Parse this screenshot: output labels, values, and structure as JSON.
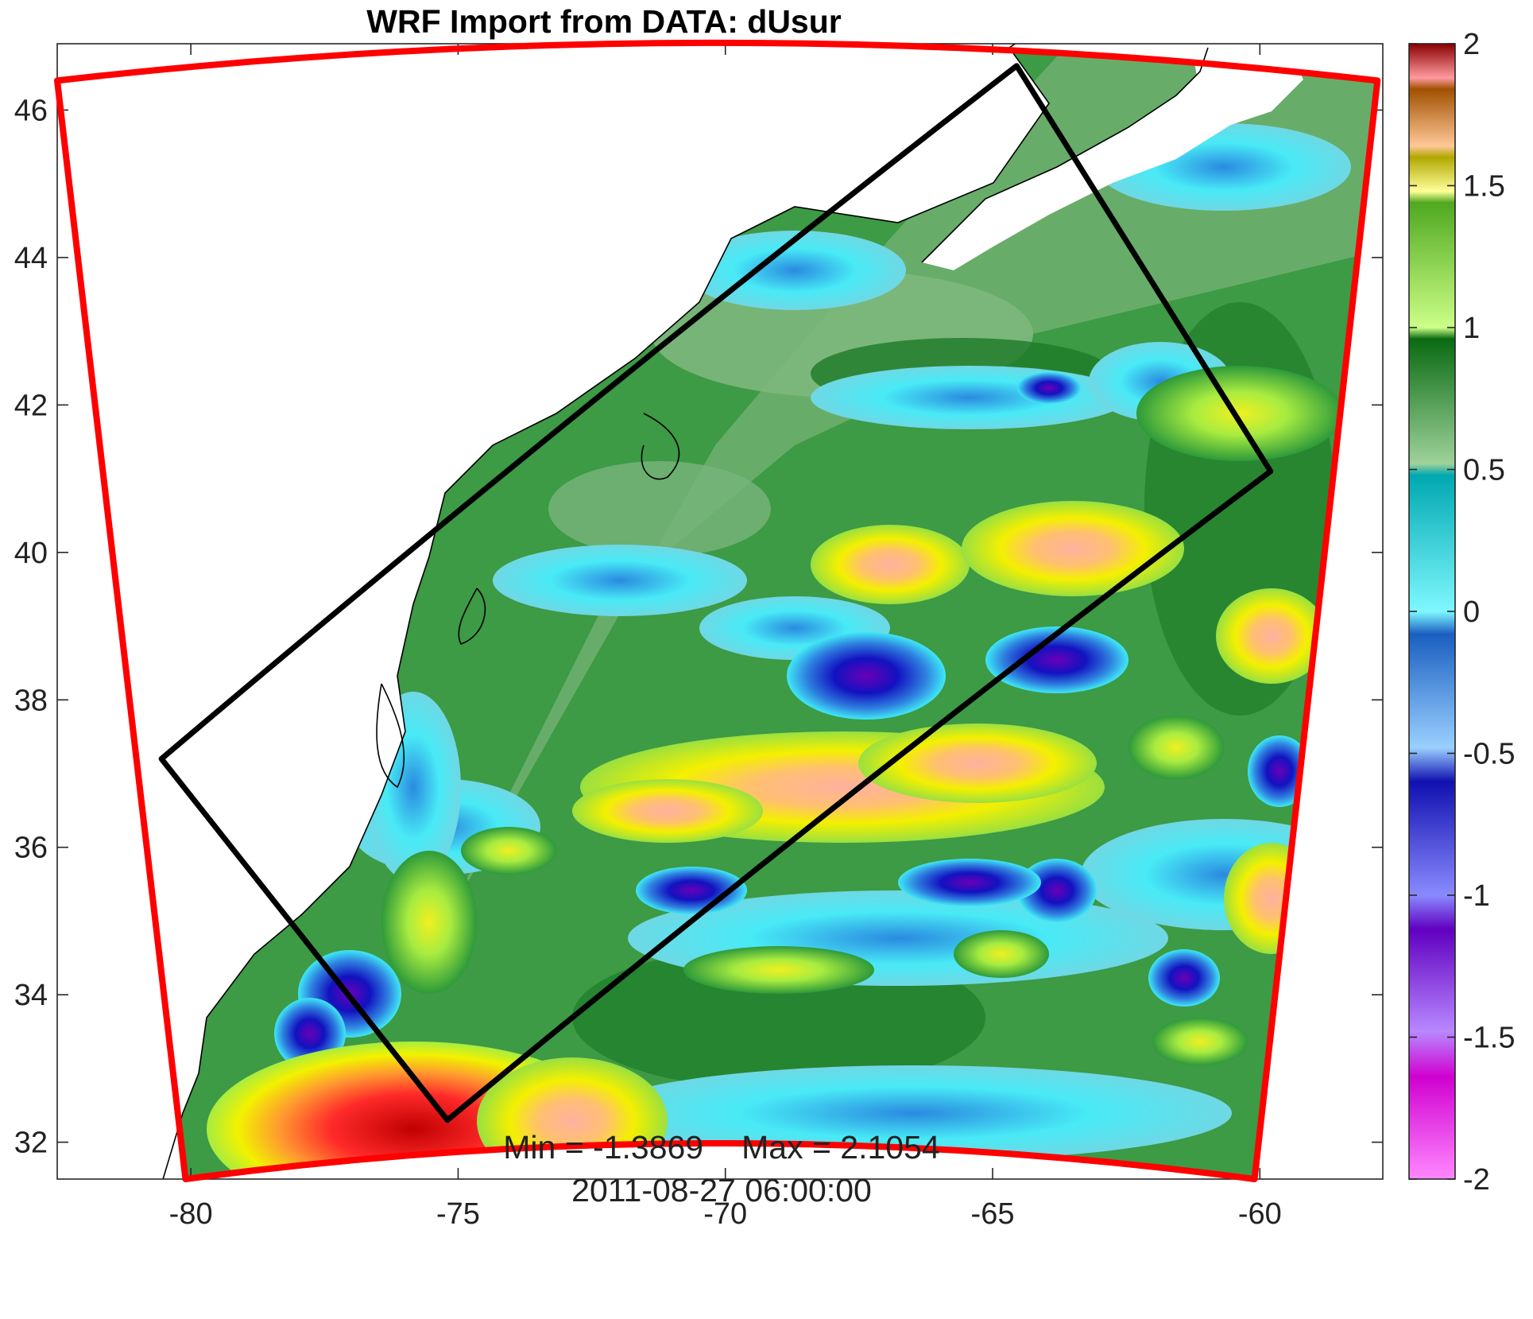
{
  "title": "WRF Import from DATA: dUsur",
  "stats": {
    "min_label": "Min = -1.3869",
    "max_label": "Max = 2.1054",
    "timestamp": "2011-08-27 06:00:00"
  },
  "axes": {
    "x_ticks": [
      -80,
      -75,
      -70,
      -65,
      -60
    ],
    "y_ticks": [
      32,
      34,
      36,
      38,
      40,
      42,
      44,
      46
    ],
    "x_range": [
      -82.5,
      -57.7
    ],
    "y_range": [
      31.5,
      46.9
    ]
  },
  "colorbar": {
    "ticks": [
      2,
      1.5,
      1,
      0.5,
      0,
      -0.5,
      -1,
      -1.5,
      -2
    ],
    "range": [
      -2,
      2
    ],
    "colors": [
      "#ff66ff",
      "#7a00c8",
      "#1010b8",
      "#3f8fe0",
      "#2fe0f0",
      "#5aa86a",
      "#a8ec40",
      "#f2f200",
      "#ffb060",
      "#c00000"
    ]
  },
  "domains": {
    "outer_color": "#ff0000",
    "inner_color": "#000000",
    "outer_corners": [
      {
        "lon": -82.5,
        "lat": 46.4
      },
      {
        "lon": -57.8,
        "lat": 46.4
      },
      {
        "lon": -60.1,
        "lat": 31.5
      },
      {
        "lon": -80.1,
        "lat": 31.5
      }
    ],
    "inner_corners": [
      {
        "lon": -80.55,
        "lat": 37.2
      },
      {
        "lon": -64.55,
        "lat": 46.6
      },
      {
        "lon": -59.8,
        "lat": 41.1
      },
      {
        "lon": -75.2,
        "lat": 32.3
      }
    ]
  }
}
